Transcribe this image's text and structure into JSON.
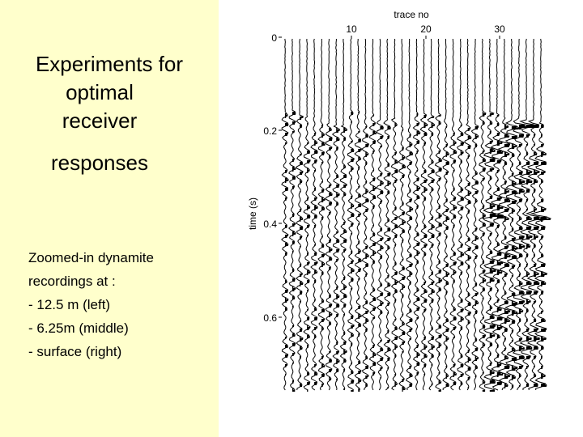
{
  "slide": {
    "title_lines": [
      "Experiments for",
      "optimal",
      "receiver",
      "responses"
    ],
    "body_lines": [
      "Zoomed-in dynamite",
      "recordings at :",
      "- 12.5 m (left)",
      "- 6.25m (middle)",
      "- surface (right)"
    ],
    "colors": {
      "left_panel_background": "#ffffcc",
      "text": "#000000",
      "traces": "#000000"
    }
  },
  "seismic_section": {
    "x_axis_label": "trace no",
    "x_ticks": [
      "10",
      "20",
      "30"
    ],
    "y_axis_label": "time (s)",
    "y_ticks": [
      "0",
      "0.2",
      "0.4",
      "0.6"
    ]
  }
}
